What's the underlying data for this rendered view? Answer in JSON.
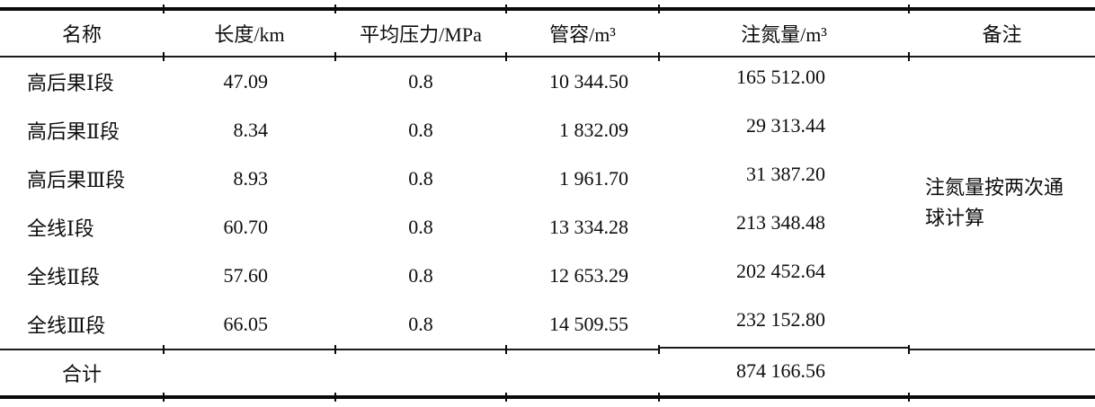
{
  "table": {
    "columns": [
      {
        "label": "名称"
      },
      {
        "label": "长度/km"
      },
      {
        "label": "平均压力/MPa"
      },
      {
        "label": "管容/m³"
      },
      {
        "label": "注氮量/m³"
      },
      {
        "label": "备注"
      }
    ],
    "rows": [
      {
        "name": "高后果Ⅰ段",
        "length_km": "47.09",
        "pressure_mpa": "0.8",
        "volume_m3": "10 344.50",
        "nitrogen_m3": "165 512.00"
      },
      {
        "name": "高后果Ⅱ段",
        "length_km": "8.34",
        "pressure_mpa": "0.8",
        "volume_m3": "1 832.09",
        "nitrogen_m3": "29 313.44"
      },
      {
        "name": "高后果Ⅲ段",
        "length_km": "8.93",
        "pressure_mpa": "0.8",
        "volume_m3": "1 961.70",
        "nitrogen_m3": "31 387.20"
      },
      {
        "name": "全线Ⅰ段",
        "length_km": "60.70",
        "pressure_mpa": "0.8",
        "volume_m3": "13 334.28",
        "nitrogen_m3": "213 348.48"
      },
      {
        "name": "全线Ⅱ段",
        "length_km": "57.60",
        "pressure_mpa": "0.8",
        "volume_m3": "12 653.29",
        "nitrogen_m3": "202 452.64"
      },
      {
        "name": "全线Ⅲ段",
        "length_km": "66.05",
        "pressure_mpa": "0.8",
        "volume_m3": "14 509.55",
        "nitrogen_m3": "232 152.80"
      }
    ],
    "remark": "注氮量按两次通球计算",
    "total": {
      "label": "合计",
      "nitrogen_m3": "874 166.56"
    }
  }
}
